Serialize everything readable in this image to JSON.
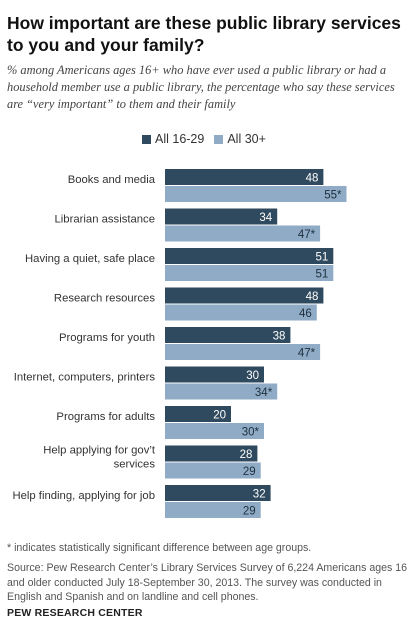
{
  "title": "How important are these public library services to you and your family?",
  "subtitle": "% among Americans ages 16+ who have ever used a public library or had a household member use a public library, the percentage who say these services are “very important” to them and their family",
  "footnote": "* indicates statistically significant difference between age groups.",
  "source": "Source: Pew Research Center’s Library Services Survey of 6,224 Americans ages 16 and older conducted July 18-September 30, 2013. The survey was conducted in English and Spanish and on landline and cell phones.",
  "brand": "PEW RESEARCH CENTER",
  "colors": {
    "series1": "#2f4a5e",
    "series2": "#8fabc6"
  },
  "chart_data": {
    "type": "bar",
    "orientation": "horizontal",
    "categories": [
      "Books and media",
      "Librarian assistance",
      "Having a quiet, safe place",
      "Research resources",
      "Programs for youth",
      "Internet, computers, printers",
      "Programs for adults",
      "Help applying for gov’t services",
      "Help finding, applying for job"
    ],
    "series": [
      {
        "name": "All 16-29",
        "values": [
          48,
          34,
          51,
          48,
          38,
          30,
          20,
          28,
          32
        ],
        "labels": [
          "48",
          "34",
          "51",
          "48",
          "38",
          "30",
          "20",
          "28",
          "32"
        ]
      },
      {
        "name": "All 30+",
        "values": [
          55,
          47,
          51,
          46,
          47,
          34,
          30,
          29,
          29
        ],
        "labels": [
          "55*",
          "47*",
          "51",
          "46",
          "47*",
          "34*",
          "30*",
          "29",
          "29"
        ]
      }
    ],
    "xlim": [
      0,
      100
    ],
    "legend_position": "top",
    "grid": false
  }
}
